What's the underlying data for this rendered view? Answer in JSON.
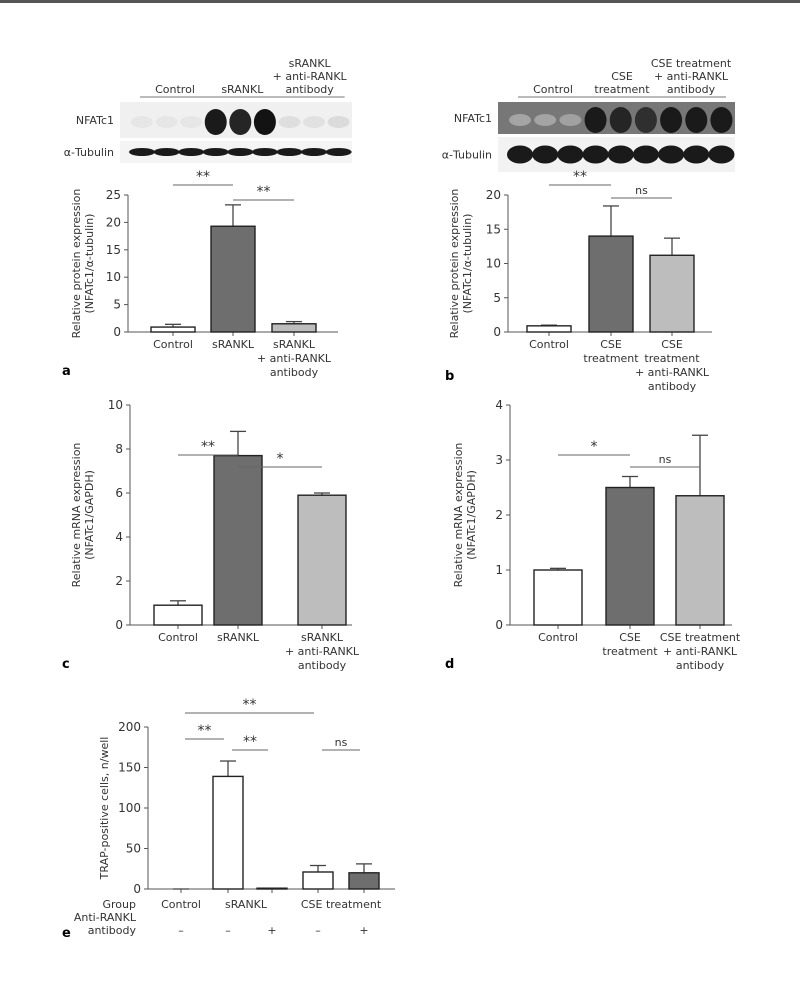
{
  "blots": [
    {
      "panel": "a",
      "groups": [
        [
          "Control"
        ],
        [
          "sRANKL"
        ],
        [
          "sRANKL",
          "+ anti-RANKL",
          "antibody"
        ]
      ],
      "rows": [
        "NFATc1",
        "α-Tubulin"
      ]
    },
    {
      "panel": "b",
      "groups": [
        [
          "Control"
        ],
        [
          "CSE",
          "treatment"
        ],
        [
          "CSE treatment",
          "+ anti-RANKL",
          "antibody"
        ]
      ],
      "rows": [
        "NFATc1",
        "α-Tubulin"
      ]
    }
  ],
  "chart_data": [
    {
      "panel": "a",
      "type": "bar",
      "ylabel": [
        "Relative protein expression",
        "(NFATc1/α-tubulin)"
      ],
      "ylim": [
        0,
        25
      ],
      "ticks": [
        0,
        5,
        10,
        15,
        20,
        25
      ],
      "categories": [
        [
          "Control"
        ],
        [
          "sRANKL"
        ],
        [
          "sRANKL",
          "+ anti-RANKL",
          "antibody"
        ]
      ],
      "values": [
        0.9,
        19.3,
        1.5
      ],
      "error_upper": [
        1.4,
        23.2,
        1.9
      ],
      "colors": [
        "#ffffff",
        "#6e6e6e",
        "#bdbdbd"
      ],
      "significance": [
        {
          "from": 0,
          "to": 1,
          "label": "**"
        },
        {
          "from": 1,
          "to": 2,
          "label": "**"
        }
      ]
    },
    {
      "panel": "b",
      "type": "bar",
      "ylabel": [
        "Relative protein expression",
        "(NFATc1/α-tubulin)"
      ],
      "ylim": [
        0,
        20
      ],
      "ticks": [
        0,
        5,
        10,
        15,
        20
      ],
      "categories": [
        [
          "Control"
        ],
        [
          "CSE",
          "treatment"
        ],
        [
          "CSE",
          "treatment",
          "+ anti-RANKL",
          "antibody"
        ]
      ],
      "values": [
        0.9,
        14.0,
        11.2
      ],
      "error_upper": [
        1.0,
        18.4,
        13.7
      ],
      "colors": [
        "#ffffff",
        "#6e6e6e",
        "#bdbdbd"
      ],
      "significance": [
        {
          "from": 0,
          "to": 1,
          "label": "**"
        },
        {
          "from": 1,
          "to": 2,
          "label": "ns"
        }
      ]
    },
    {
      "panel": "c",
      "type": "bar",
      "ylabel": [
        "Relative mRNA expression",
        "(NFATc1/GAPDH)"
      ],
      "ylim": [
        0,
        10
      ],
      "ticks": [
        0,
        2,
        4,
        6,
        8,
        10
      ],
      "categories": [
        [
          "Control"
        ],
        [
          "sRANKL"
        ],
        [
          "sRANKL",
          "+ anti-RANKL",
          "antibody"
        ]
      ],
      "values": [
        0.9,
        7.7,
        5.9
      ],
      "error_upper": [
        1.1,
        8.8,
        6.0
      ],
      "colors": [
        "#ffffff",
        "#6e6e6e",
        "#bdbdbd"
      ],
      "significance": [
        {
          "from": 0,
          "to": 1,
          "label": "**"
        },
        {
          "from": 1,
          "to": 2,
          "label": "*"
        }
      ]
    },
    {
      "panel": "d",
      "type": "bar",
      "ylabel": [
        "Relative mRNA expression",
        "(NFATc1/GAPDH)"
      ],
      "ylim": [
        0,
        4
      ],
      "ticks": [
        0,
        1,
        2,
        3,
        4
      ],
      "categories": [
        [
          "Control"
        ],
        [
          "CSE",
          "treatment"
        ],
        [
          "CSE treatment",
          "+ anti-RANKL",
          "antibody"
        ]
      ],
      "values": [
        1.0,
        2.5,
        2.35
      ],
      "error_upper": [
        1.03,
        2.7,
        3.45
      ],
      "colors": [
        "#ffffff",
        "#6e6e6e",
        "#bdbdbd"
      ],
      "significance": [
        {
          "from": 0,
          "to": 1,
          "label": "*"
        },
        {
          "from": 1,
          "to": 2,
          "label": "ns"
        }
      ]
    },
    {
      "panel": "e",
      "type": "bar",
      "ylabel": [
        "TRAP-positive cells, n/well"
      ],
      "ylim": [
        0,
        200
      ],
      "ticks": [
        0,
        50,
        100,
        150,
        200
      ],
      "group_row_label": "Group",
      "antibody_row_label": [
        "Anti-RANKL",
        "antibody"
      ],
      "groups": [
        "Control",
        "sRANKL",
        "CSE treatment"
      ],
      "antibody": [
        "–",
        "–",
        "+",
        "–",
        "+"
      ],
      "values": [
        0,
        139,
        1,
        21,
        20
      ],
      "error_upper": [
        0,
        158,
        1,
        29,
        31
      ],
      "colors": [
        "#ffffff",
        "#ffffff",
        "#ffffff",
        "#ffffff",
        "#6e6e6e"
      ],
      "significance": [
        {
          "from": 0,
          "to": 3,
          "label": "**"
        },
        {
          "from": 0,
          "to": 1,
          "label": "**"
        },
        {
          "from": 1,
          "to": 2,
          "label": "**"
        },
        {
          "from": 3,
          "to": 4,
          "label": "ns"
        }
      ]
    }
  ]
}
